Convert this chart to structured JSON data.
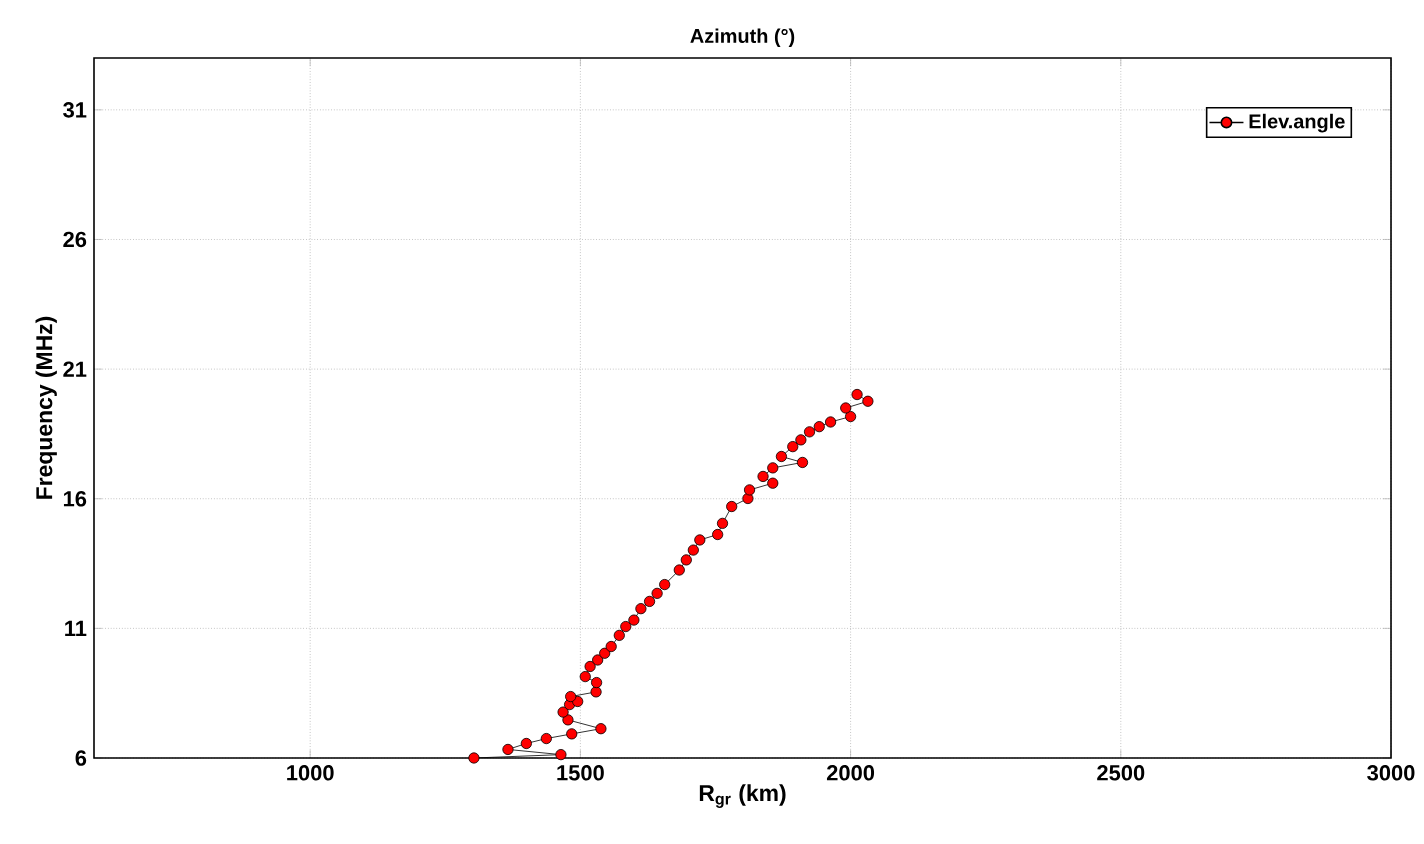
{
  "chart_data": {
    "type": "line",
    "title": "Azimuth (°)",
    "xlabel": "R$_{gr}$ (km)",
    "ylabel": "Frequency (MHz)",
    "xlim": [
      600,
      3000
    ],
    "ylim": [
      6,
      33
    ],
    "xticks": [
      1000,
      1500,
      2000,
      2500,
      3000
    ],
    "yticks": [
      6,
      11,
      16,
      21,
      26,
      31
    ],
    "grid": true,
    "legend": "top right",
    "marker": "circle",
    "line_style": "solid",
    "series": [
      {
        "name": "Elev.angle",
        "color": "#ff0000",
        "x": [
          1303,
          1464,
          1366,
          1400,
          1437,
          1484,
          1538,
          1477,
          1468,
          1480,
          1495,
          1482,
          1529,
          1530,
          1509,
          1518,
          1532,
          1545,
          1557,
          1572,
          1584,
          1599,
          1612,
          1628,
          1642,
          1656,
          1683,
          1696,
          1709,
          1721,
          1754,
          1763,
          1780,
          1810,
          1813,
          1856,
          1838,
          1856,
          1911,
          1872,
          1893,
          1908,
          1924,
          1942,
          1963,
          2000,
          1991,
          2032,
          2012
        ],
        "values": [
          6.0,
          6.13,
          6.33,
          6.56,
          6.75,
          6.93,
          7.13,
          7.47,
          7.77,
          8.06,
          8.18,
          8.37,
          8.55,
          8.91,
          9.14,
          9.53,
          9.78,
          10.04,
          10.3,
          10.73,
          11.07,
          11.32,
          11.76,
          12.04,
          12.35,
          12.69,
          13.25,
          13.64,
          14.02,
          14.41,
          14.62,
          15.05,
          15.7,
          16.01,
          16.34,
          16.6,
          16.86,
          17.19,
          17.4,
          17.63,
          18.01,
          18.27,
          18.58,
          18.78,
          18.96,
          19.17,
          19.5,
          19.76,
          20.02
        ]
      }
    ]
  }
}
